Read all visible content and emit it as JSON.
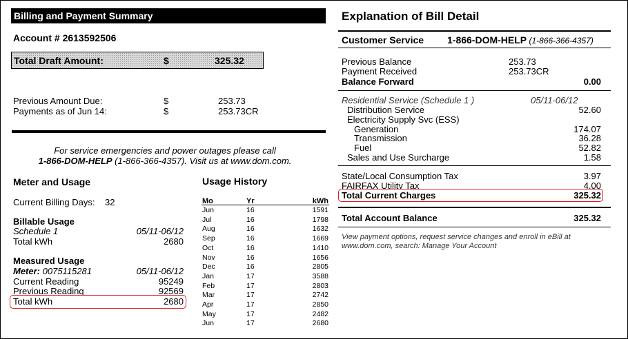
{
  "left": {
    "header": "Billing and Payment Summary",
    "account": "Account # 2613592506",
    "draft": {
      "label": "Total Draft Amount:",
      "currency": "$",
      "amount": "325.32"
    },
    "previous_due": {
      "label": "Previous Amount Due:",
      "currency": "$",
      "amount": "253.73"
    },
    "payments": {
      "label": "Payments as of Jun 14:",
      "currency": "$",
      "amount": "253.73CR"
    },
    "emergency_line1": "For service emergencies and power outages please call",
    "emergency_phone": "1-866-DOM-HELP",
    "emergency_rest": " (1-866-366-4357). Visit us at www.dom.com.",
    "meter": {
      "title": "Meter and Usage",
      "billing_days_label": "Current Billing Days:",
      "billing_days_value": "32",
      "billable_title": "Billable Usage",
      "schedule": "Schedule 1",
      "schedule_dates": "05/11-06/12",
      "total_kwh_label": "Total kWh",
      "total_kwh_value": "2680",
      "measured_title": "Measured Usage",
      "meter_label": "Meter:",
      "meter_number": "0075115281",
      "meter_dates": "05/11-06/12",
      "current_reading_label": "Current Reading",
      "current_reading_value": "95249",
      "previous_reading_label": "Previous Reading",
      "previous_reading_value": "92569",
      "measured_total_label": "Total kWh",
      "measured_total_value": "2680"
    },
    "history": {
      "title": "Usage History",
      "col_mo": "Mo",
      "col_yr": "Yr",
      "col_kwh": "kWh",
      "rows": [
        {
          "mo": "Jun",
          "yr": "16",
          "kwh": "1591"
        },
        {
          "mo": "Jul",
          "yr": "16",
          "kwh": "1798"
        },
        {
          "mo": "Aug",
          "yr": "16",
          "kwh": "1632"
        },
        {
          "mo": "Sep",
          "yr": "16",
          "kwh": "1669"
        },
        {
          "mo": "Oct",
          "yr": "16",
          "kwh": "1410"
        },
        {
          "mo": "Nov",
          "yr": "16",
          "kwh": "1656"
        },
        {
          "mo": "Dec",
          "yr": "16",
          "kwh": "2805"
        },
        {
          "mo": "Jan",
          "yr": "17",
          "kwh": "3588"
        },
        {
          "mo": "Feb",
          "yr": "17",
          "kwh": "2803"
        },
        {
          "mo": "Mar",
          "yr": "17",
          "kwh": "2742"
        },
        {
          "mo": "Apr",
          "yr": "17",
          "kwh": "2850"
        },
        {
          "mo": "May",
          "yr": "17",
          "kwh": "2482"
        },
        {
          "mo": "Jun",
          "yr": "17",
          "kwh": "2680"
        }
      ]
    }
  },
  "right": {
    "title": "Explanation of Bill Detail",
    "cs_label": "Customer Service",
    "cs_phone": "1-866-DOM-HELP",
    "cs_phone_numeric": " (1-866-366-4357)",
    "previous_balance": {
      "label": "Previous Balance",
      "value": "253.73"
    },
    "payment_received": {
      "label": "Payment Received",
      "value": "253.73CR"
    },
    "balance_forward": {
      "label": "Balance Forward",
      "value": "0.00"
    },
    "residential": {
      "label": "Residential Service (Schedule 1 )",
      "dates": "05/11-06/12"
    },
    "distribution": {
      "label": "Distribution Service",
      "value": "52.60"
    },
    "ess_label": "Electricity Supply Svc (ESS)",
    "generation": {
      "label": "Generation",
      "value": "174.07"
    },
    "transmission": {
      "label": "Transmission",
      "value": "36.28"
    },
    "fuel": {
      "label": "Fuel",
      "value": "52.82"
    },
    "surcharge": {
      "label": "Sales and Use Surcharge",
      "value": "1.58"
    },
    "state_tax": {
      "label": "State/Local Consumption Tax",
      "value": "3.97"
    },
    "fairfax_tax": {
      "label": "FAIRFAX Utility Tax",
      "value": "4.00"
    },
    "total_current": {
      "label": "Total Current Charges",
      "value": "325.32"
    },
    "total_account": {
      "label": "Total Account Balance",
      "value": "325.32"
    },
    "footer_line1": "View payment options, request service changes and enroll in eBill at",
    "footer_line2": "www.dom.com, search: Manage Your Account"
  }
}
